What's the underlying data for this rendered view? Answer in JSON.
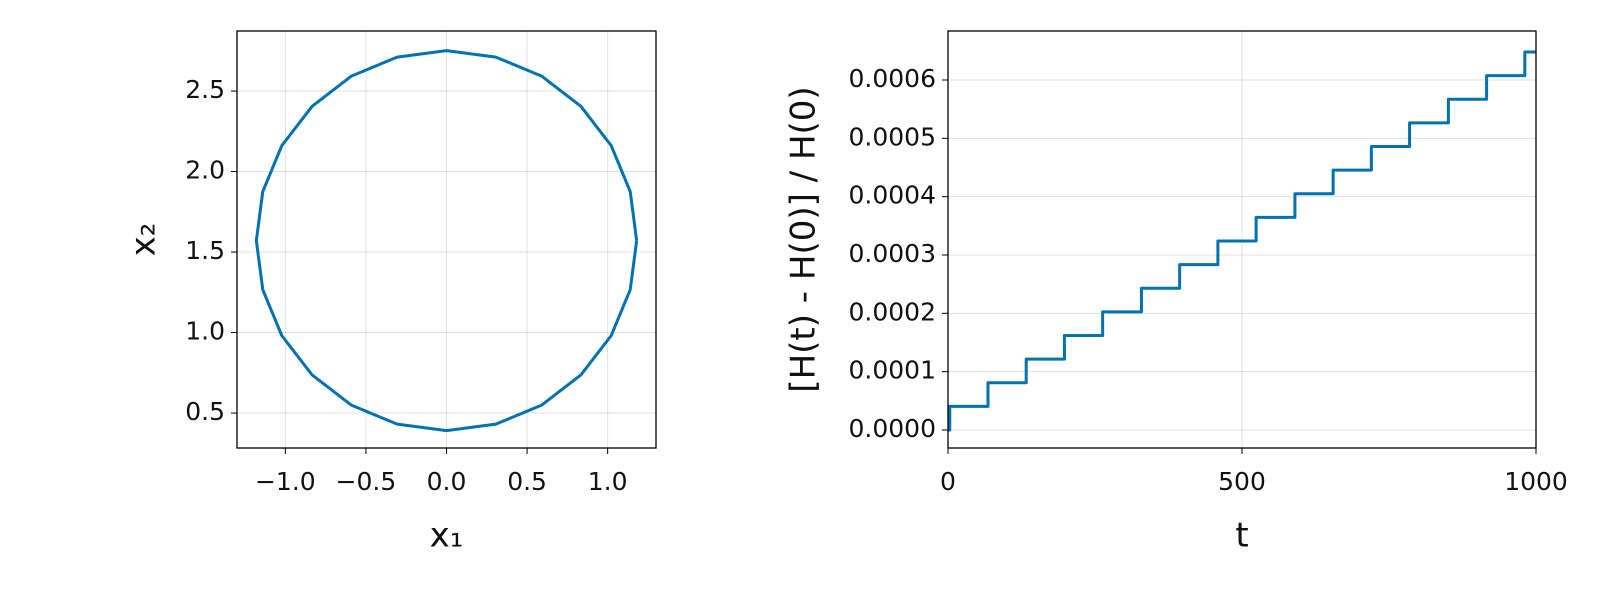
{
  "chart_data": [
    {
      "type": "line",
      "xlabel": "x₁",
      "ylabel": "x₂",
      "grid": true,
      "color": "#0072b2",
      "x": [
        1.18,
        1.14,
        1.022,
        0.834,
        0.59,
        0.306,
        0,
        -0.306,
        -0.59,
        -0.834,
        -1.022,
        -1.14,
        -1.18,
        -1.14,
        -1.022,
        -0.834,
        -0.59,
        -0.306,
        0,
        0.306,
        0.59,
        0.834,
        1.022,
        1.14,
        1.18
      ],
      "values": [
        1.571,
        1.876,
        2.161,
        2.405,
        2.593,
        2.711,
        2.751,
        2.711,
        2.593,
        2.405,
        2.161,
        1.876,
        1.571,
        1.266,
        0.981,
        0.737,
        0.549,
        0.431,
        0.391,
        0.431,
        0.549,
        0.737,
        0.981,
        1.266,
        1.571
      ],
      "xlim": [
        -1.3,
        1.3
      ],
      "ylim": [
        0.283,
        2.873
      ],
      "xticks": [
        {
          "value": -1.0,
          "label": "−1.0"
        },
        {
          "value": -0.5,
          "label": "−0.5"
        },
        {
          "value": 0,
          "label": "0.0"
        },
        0.5,
        {
          "value": 1.0,
          "label": "1.0"
        }
      ],
      "yticks": [
        0.5,
        {
          "value": 1.0,
          "label": "1.0"
        },
        1.5,
        {
          "value": 2.0,
          "label": "2.0"
        },
        2.5
      ]
    },
    {
      "type": "line",
      "xlabel": "t",
      "ylabel": "[H(t) - H(0)] / H(0)",
      "grid": true,
      "color": "#0072b2",
      "x": [
        0,
        3,
        3,
        68,
        68,
        133,
        133,
        198,
        198,
        263,
        263,
        329,
        329,
        394,
        394,
        459,
        459,
        524,
        524,
        590,
        590,
        655,
        655,
        720,
        720,
        785,
        785,
        851,
        851,
        916,
        916,
        981,
        981,
        1000
      ],
      "values": [
        0,
        0,
        4.05e-05,
        4.05e-05,
        8.1e-05,
        8.1e-05,
        0.0001215,
        0.0001215,
        0.000162,
        0.000162,
        0.0002025,
        0.0002025,
        0.000243,
        0.000243,
        0.0002835,
        0.0002835,
        0.000324,
        0.000324,
        0.0003645,
        0.0003645,
        0.000405,
        0.000405,
        0.0004455,
        0.0004455,
        0.000486,
        0.000486,
        0.0005265,
        0.0005265,
        0.000567,
        0.000567,
        0.0006075,
        0.0006075,
        0.000648,
        0.000648
      ],
      "xlim": [
        0,
        1000
      ],
      "ylim": [
        -3.09e-05,
        0.000684
      ],
      "xticks": [
        0,
        500,
        1000
      ],
      "yticks": [
        {
          "value": 0,
          "label": "0.0000"
        },
        {
          "value": 0.0001,
          "label": "0.0001"
        },
        {
          "value": 0.0002,
          "label": "0.0002"
        },
        {
          "value": 0.0003,
          "label": "0.0003"
        },
        {
          "value": 0.0004,
          "label": "0.0004"
        },
        {
          "value": 0.0005,
          "label": "0.0005"
        },
        {
          "value": 0.0006,
          "label": "0.0006"
        }
      ]
    }
  ]
}
